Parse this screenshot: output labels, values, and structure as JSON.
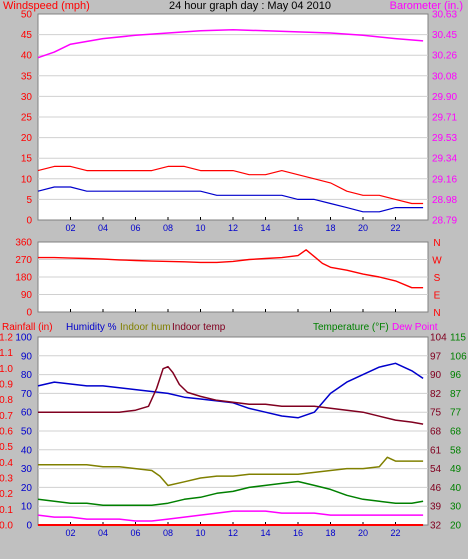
{
  "title": "24 hour graph day : May 04 2010",
  "colors": {
    "background": "#c0c0c0",
    "plot_bg": "#ffffff",
    "wind_speed": "#ff0000",
    "wind_gust": "#ff0000",
    "wind_avg": "#0000cc",
    "barometer": "#ff00ff",
    "wind_direction": "#ff0000",
    "rainfall": "#ff0000",
    "humidity": "#0000cc",
    "indoor_hum": "#808000",
    "indoor_temp": "#800020",
    "temperature": "#008000",
    "dew_point": "#ff00ff"
  },
  "chart_data": [
    {
      "type": "line",
      "ylabel_left": "Windspeed (mph)",
      "ylabel_right": "Barometer (in.)",
      "x_ticks": [
        "02",
        "04",
        "06",
        "08",
        "10",
        "12",
        "14",
        "16",
        "18",
        "20",
        "22"
      ],
      "xlim": [
        0,
        24
      ],
      "ylim_left": [
        0,
        50
      ],
      "ylim_right": [
        28.79,
        30.63
      ],
      "left_ticks": [
        "0",
        "5",
        "10",
        "15",
        "20",
        "25",
        "30",
        "35",
        "40",
        "45",
        "50"
      ],
      "right_ticks": [
        "28.79",
        "28.98",
        "29.16",
        "29.34",
        "29.53",
        "29.71",
        "29.90",
        "30.08",
        "30.26",
        "30.45",
        "30.63"
      ],
      "grid": true,
      "series": [
        {
          "name": "Windspeed gust",
          "axis": "left",
          "x": [
            0,
            1,
            2,
            3,
            4,
            5,
            6,
            7,
            8,
            9,
            10,
            11,
            12,
            13,
            14,
            15,
            16,
            17,
            18,
            19,
            20,
            21,
            22,
            23,
            23.7
          ],
          "y": [
            12,
            13,
            13,
            12,
            12,
            12,
            12,
            12,
            13,
            13,
            12,
            12,
            12,
            11,
            11,
            12,
            11,
            10,
            9,
            7,
            6,
            6,
            5,
            4,
            4
          ]
        },
        {
          "name": "Windspeed average",
          "axis": "left",
          "x": [
            0,
            1,
            2,
            3,
            4,
            5,
            6,
            7,
            8,
            9,
            10,
            11,
            12,
            13,
            14,
            15,
            16,
            17,
            18,
            19,
            20,
            21,
            22,
            23,
            23.7
          ],
          "y": [
            7,
            8,
            8,
            7,
            7,
            7,
            7,
            7,
            7,
            7,
            7,
            6,
            6,
            6,
            6,
            6,
            5,
            5,
            4,
            3,
            2,
            2,
            3,
            3,
            3
          ]
        },
        {
          "name": "Barometer",
          "axis": "right",
          "x": [
            0,
            1,
            2,
            4,
            6,
            8,
            10,
            12,
            14,
            16,
            18,
            20,
            22,
            23.7
          ],
          "y": [
            30.24,
            30.29,
            30.36,
            30.41,
            30.44,
            30.46,
            30.48,
            30.49,
            30.48,
            30.47,
            30.46,
            30.44,
            30.41,
            30.39
          ]
        }
      ]
    },
    {
      "type": "line",
      "ylabel_right": "N W S E N",
      "direction_labels": [
        "N",
        "W",
        "S",
        "E",
        "N"
      ],
      "x_ticks": [
        "02",
        "04",
        "06",
        "08",
        "10",
        "12",
        "14",
        "16",
        "18",
        "20",
        "22"
      ],
      "xlim": [
        0,
        24
      ],
      "ylim": [
        0,
        360
      ],
      "left_ticks": [
        "0",
        "90",
        "180",
        "270",
        "360"
      ],
      "grid": true,
      "series": [
        {
          "name": "Wind direction",
          "x": [
            0,
            1,
            2,
            3,
            4,
            5,
            6,
            7,
            8,
            9,
            10,
            11,
            12,
            13,
            14,
            15,
            16,
            16.5,
            17,
            17.5,
            18,
            19,
            20,
            21,
            22,
            23,
            23.7
          ],
          "y": [
            280,
            280,
            277,
            275,
            272,
            268,
            265,
            262,
            260,
            258,
            255,
            255,
            260,
            270,
            275,
            280,
            290,
            320,
            285,
            250,
            230,
            215,
            195,
            180,
            160,
            125,
            125
          ]
        }
      ]
    },
    {
      "type": "line",
      "legend": [
        "Rainfall (in)",
        "Humidity %",
        "Indoor hum",
        "Indoor temp",
        "Temperature (°F)",
        "Dew Point"
      ],
      "x_ticks": [
        "02",
        "04",
        "06",
        "08",
        "10",
        "12",
        "14",
        "16",
        "18",
        "20",
        "22"
      ],
      "xlim": [
        0,
        24
      ],
      "rain_ticks": [
        "0.0",
        "0.1",
        "0.2",
        "0.3",
        "0.4",
        "0.5",
        "0.6",
        "0.7",
        "0.8",
        "0.9",
        "1.0",
        "1.1",
        "1.2"
      ],
      "hum_ticks": [
        "0",
        "10",
        "20",
        "30",
        "40",
        "50",
        "60",
        "70",
        "80",
        "90",
        "100"
      ],
      "temp_ticks_a": [
        "32",
        "39",
        "46",
        "54",
        "61",
        "68",
        "75",
        "82",
        "90",
        "97",
        "104"
      ],
      "temp_ticks_b": [
        "20",
        "30",
        "40",
        "49",
        "58",
        "68",
        "77",
        "87",
        "96",
        "106",
        "115"
      ],
      "ylim_humidity": [
        0,
        100
      ],
      "ylim_temperature": [
        20,
        115
      ],
      "grid": true,
      "series": [
        {
          "name": "Rainfall (in)",
          "axis": "rain",
          "x": [
            0,
            23.7
          ],
          "y": [
            0,
            0
          ]
        },
        {
          "name": "Humidity %",
          "axis": "humidity",
          "x": [
            0,
            1,
            2,
            3,
            4,
            5,
            6,
            7,
            8,
            9,
            10,
            11,
            12,
            13,
            14,
            15,
            16,
            17,
            18,
            19,
            20,
            21,
            22,
            23,
            23.7
          ],
          "y": [
            74,
            76,
            75,
            74,
            74,
            73,
            72,
            71,
            70,
            68,
            67,
            66,
            65,
            62,
            60,
            58,
            57,
            60,
            70,
            76,
            80,
            84,
            86,
            82,
            78
          ]
        },
        {
          "name": "Indoor hum",
          "axis": "humidity",
          "x": [
            0,
            1,
            2,
            3,
            4,
            5,
            6,
            7,
            7.5,
            8,
            9,
            10,
            11,
            12,
            13,
            14,
            15,
            16,
            17,
            18,
            19,
            20,
            21,
            21.5,
            22,
            23,
            23.7
          ],
          "y": [
            32,
            32,
            32,
            32,
            31,
            31,
            30,
            29,
            26,
            21,
            23,
            25,
            26,
            26,
            27,
            27,
            27,
            27,
            28,
            29,
            30,
            30,
            31,
            36,
            34,
            34,
            34
          ]
        },
        {
          "name": "Indoor temp",
          "axis": "temperature",
          "x": [
            0,
            1,
            2,
            3,
            4,
            5,
            6,
            6.8,
            7.3,
            7.7,
            8,
            8.3,
            8.7,
            9.2,
            10,
            11,
            12,
            13,
            14,
            15,
            16,
            17,
            18,
            19,
            20,
            21,
            22,
            23,
            23.7
          ],
          "y": [
            77,
            77,
            77,
            77,
            77,
            77,
            78,
            80,
            89,
            99,
            100,
            97,
            91,
            87,
            85,
            83,
            82,
            81,
            81,
            80,
            80,
            80,
            79,
            78,
            77,
            75,
            73,
            72,
            71
          ]
        },
        {
          "name": "Temperature (°F)",
          "axis": "temperature",
          "x": [
            0,
            1,
            2,
            3,
            4,
            5,
            6,
            7,
            8,
            9,
            10,
            11,
            12,
            13,
            14,
            15,
            16,
            17,
            18,
            19,
            20,
            21,
            22,
            23,
            23.7
          ],
          "y": [
            33,
            32,
            31,
            31,
            30,
            30,
            30,
            30,
            31,
            33,
            34,
            36,
            37,
            39,
            40,
            41,
            42,
            40,
            38,
            35,
            33,
            32,
            31,
            31,
            32
          ]
        },
        {
          "name": "Dew Point",
          "axis": "temperature",
          "x": [
            0,
            1,
            2,
            3,
            4,
            5,
            6,
            7,
            8,
            9,
            10,
            11,
            12,
            13,
            14,
            15,
            16,
            17,
            18,
            19,
            20,
            21,
            22,
            23,
            23.7
          ],
          "y": [
            25,
            24,
            24,
            23,
            23,
            23,
            22,
            22,
            23,
            24,
            25,
            26,
            27,
            27,
            27,
            26,
            26,
            26,
            25,
            25,
            25,
            25,
            25,
            25,
            25
          ]
        }
      ]
    }
  ]
}
